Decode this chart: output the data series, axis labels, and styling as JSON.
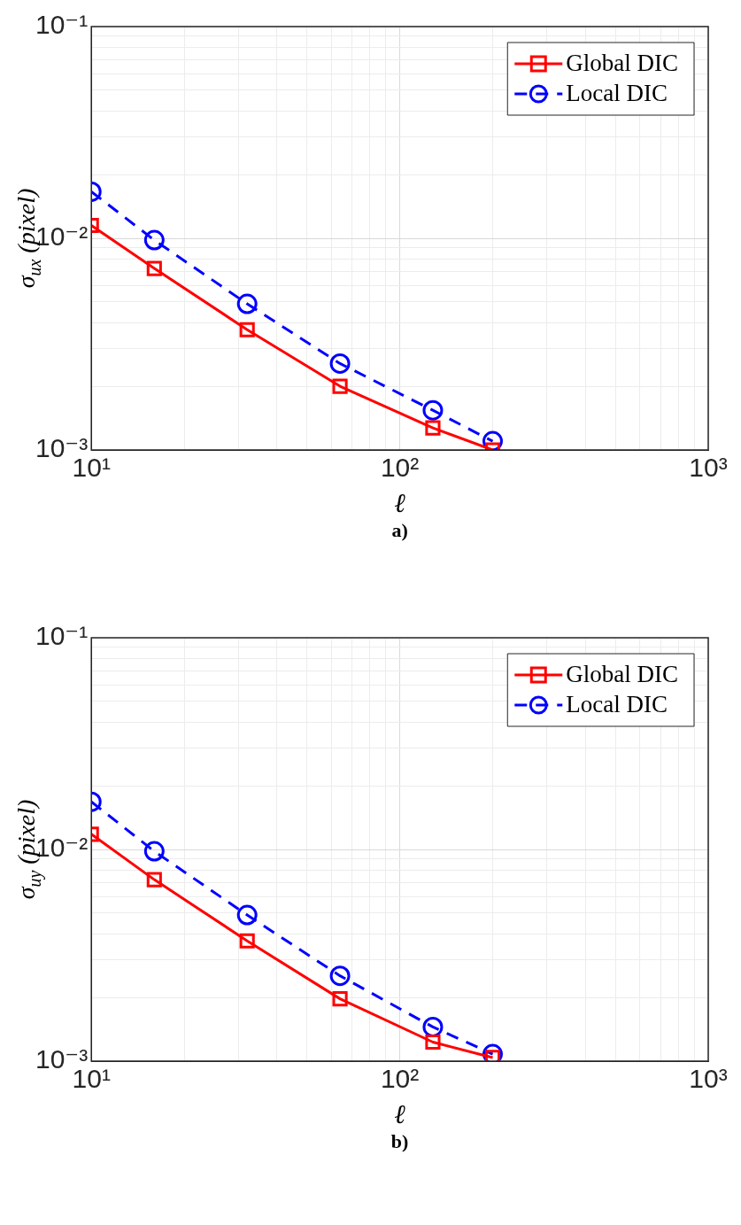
{
  "chart_data": [
    {
      "type": "line",
      "xlabel": "ℓ",
      "ylabel": "σ$_{ux}$ (pixel)",
      "annotations": [
        "a)"
      ],
      "log": "xy",
      "grid": true,
      "legend": "top right",
      "x": [
        10,
        16,
        32,
        64,
        128,
        200
      ],
      "series": [
        {
          "name": "Global DIC",
          "color": "#ff0000",
          "marker": "square",
          "line_style": "solid",
          "values": [
            0.0115,
            0.0072,
            0.0037,
            0.002,
            0.00127,
            0.001
          ]
        },
        {
          "name": "Local DIC",
          "color": "#0000ff",
          "marker": "circle",
          "line_style": "dashed",
          "values": [
            0.0166,
            0.0098,
            0.0049,
            0.00256,
            0.00154,
            0.0011
          ]
        }
      ],
      "xlim": [
        10,
        1000
      ],
      "ylim": [
        0.001,
        0.1
      ],
      "xticks": [
        {
          "value": 10,
          "label": "10¹"
        },
        {
          "value": 20,
          "label": null
        },
        {
          "value": 30,
          "label": null
        },
        {
          "value": 40,
          "label": null
        },
        {
          "value": 50,
          "label": null
        },
        {
          "value": 60,
          "label": null
        },
        {
          "value": 70,
          "label": null
        },
        {
          "value": 80,
          "label": null
        },
        {
          "value": 90,
          "label": null
        },
        {
          "value": 100,
          "label": "10²"
        },
        {
          "value": 200,
          "label": null
        },
        {
          "value": 300,
          "label": null
        },
        {
          "value": 400,
          "label": null
        },
        {
          "value": 500,
          "label": null
        },
        {
          "value": 600,
          "label": null
        },
        {
          "value": 700,
          "label": null
        },
        {
          "value": 800,
          "label": null
        },
        {
          "value": 900,
          "label": null
        },
        {
          "value": 1000,
          "label": "10³"
        }
      ],
      "yticks": [
        {
          "value": 0.001,
          "label": "10⁻³"
        },
        {
          "value": 0.002,
          "label": null
        },
        {
          "value": 0.003,
          "label": null
        },
        {
          "value": 0.004,
          "label": null
        },
        {
          "value": 0.005,
          "label": null
        },
        {
          "value": 0.006,
          "label": null
        },
        {
          "value": 0.007,
          "label": null
        },
        {
          "value": 0.008,
          "label": null
        },
        {
          "value": 0.009,
          "label": null
        },
        {
          "value": 0.01,
          "label": "10⁻²"
        },
        {
          "value": 0.02,
          "label": null
        },
        {
          "value": 0.03,
          "label": null
        },
        {
          "value": 0.04,
          "label": null
        },
        {
          "value": 0.05,
          "label": null
        },
        {
          "value": 0.06,
          "label": null
        },
        {
          "value": 0.07,
          "label": null
        },
        {
          "value": 0.08,
          "label": null
        },
        {
          "value": 0.09,
          "label": null
        },
        {
          "value": 0.1,
          "label": "10⁻¹"
        }
      ]
    },
    {
      "type": "line",
      "xlabel": "ℓ",
      "ylabel": "σ$_{uy}$ (pixel)",
      "annotations": [
        "b)"
      ],
      "log": "xy",
      "grid": true,
      "legend": "top right",
      "x": [
        10,
        16,
        32,
        64,
        128,
        200
      ],
      "series": [
        {
          "name": "Global DIC",
          "color": "#ff0000",
          "marker": "square",
          "line_style": "solid",
          "values": [
            0.0118,
            0.0072,
            0.0037,
            0.00197,
            0.00123,
            0.00104
          ]
        },
        {
          "name": "Local DIC",
          "color": "#0000ff",
          "marker": "circle",
          "line_style": "dashed",
          "values": [
            0.0168,
            0.0098,
            0.0049,
            0.00253,
            0.00145,
            0.00108
          ]
        }
      ],
      "xlim": [
        10,
        1000
      ],
      "ylim": [
        0.001,
        0.1
      ],
      "xticks": [
        {
          "value": 10,
          "label": "10¹"
        },
        {
          "value": 20,
          "label": null
        },
        {
          "value": 30,
          "label": null
        },
        {
          "value": 40,
          "label": null
        },
        {
          "value": 50,
          "label": null
        },
        {
          "value": 60,
          "label": null
        },
        {
          "value": 70,
          "label": null
        },
        {
          "value": 80,
          "label": null
        },
        {
          "value": 90,
          "label": null
        },
        {
          "value": 100,
          "label": "10²"
        },
        {
          "value": 200,
          "label": null
        },
        {
          "value": 300,
          "label": null
        },
        {
          "value": 400,
          "label": null
        },
        {
          "value": 500,
          "label": null
        },
        {
          "value": 600,
          "label": null
        },
        {
          "value": 700,
          "label": null
        },
        {
          "value": 800,
          "label": null
        },
        {
          "value": 900,
          "label": null
        },
        {
          "value": 1000,
          "label": "10³"
        }
      ],
      "yticks": [
        {
          "value": 0.001,
          "label": "10⁻³"
        },
        {
          "value": 0.002,
          "label": null
        },
        {
          "value": 0.003,
          "label": null
        },
        {
          "value": 0.004,
          "label": null
        },
        {
          "value": 0.005,
          "label": null
        },
        {
          "value": 0.006,
          "label": null
        },
        {
          "value": 0.007,
          "label": null
        },
        {
          "value": 0.008,
          "label": null
        },
        {
          "value": 0.009,
          "label": null
        },
        {
          "value": 0.01,
          "label": "10⁻²"
        },
        {
          "value": 0.02,
          "label": null
        },
        {
          "value": 0.03,
          "label": null
        },
        {
          "value": 0.04,
          "label": null
        },
        {
          "value": 0.05,
          "label": null
        },
        {
          "value": 0.06,
          "label": null
        },
        {
          "value": 0.07,
          "label": null
        },
        {
          "value": 0.08,
          "label": null
        },
        {
          "value": 0.09,
          "label": null
        },
        {
          "value": 0.1,
          "label": "10⁻¹"
        }
      ]
    }
  ]
}
